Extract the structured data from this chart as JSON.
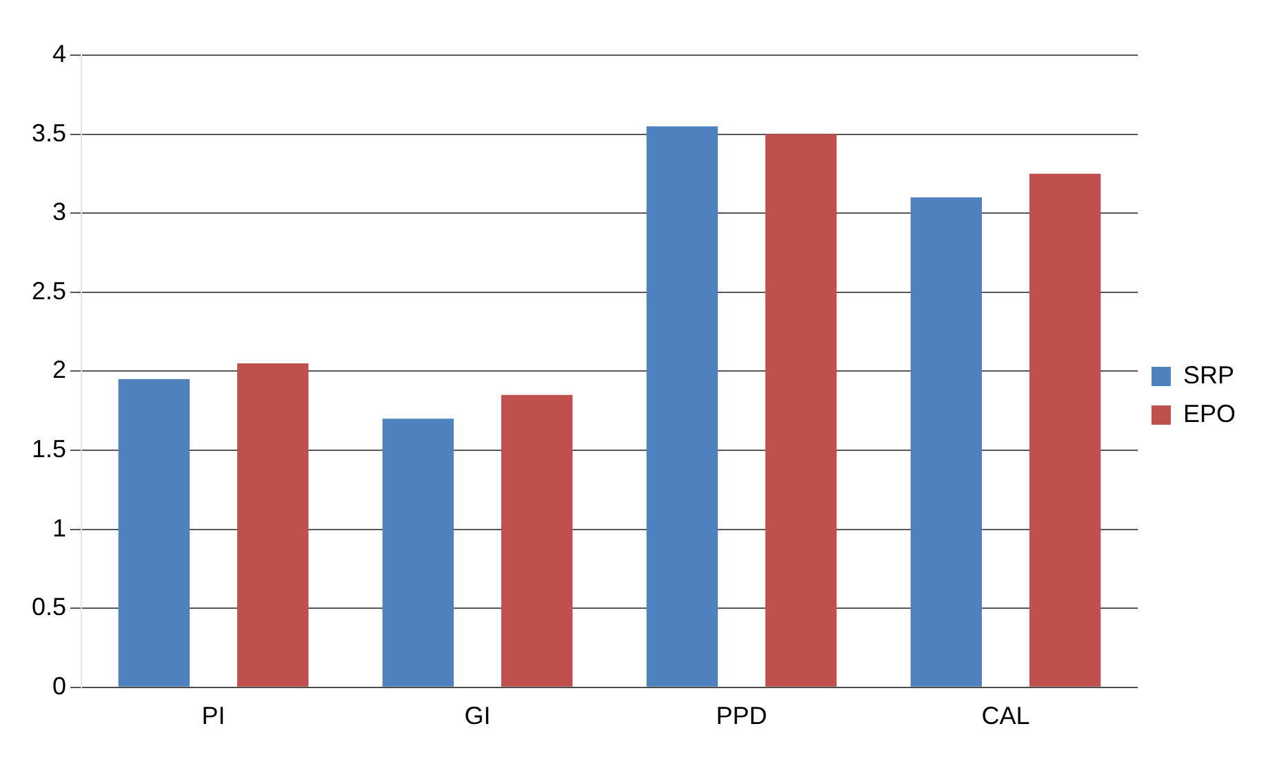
{
  "chart_data": {
    "type": "bar",
    "categories": [
      "PI",
      "GI",
      "PPD",
      "CAL"
    ],
    "series": [
      {
        "name": "SRP",
        "color": "#4f81bd",
        "values": [
          1.95,
          1.7,
          3.55,
          3.1
        ]
      },
      {
        "name": "EPO",
        "color": "#c0504d",
        "values": [
          2.05,
          1.85,
          3.5,
          3.25
        ]
      }
    ],
    "ylim": [
      0,
      4
    ],
    "yticks": [
      0,
      0.5,
      1,
      1.5,
      2,
      2.5,
      3,
      3.5,
      4
    ],
    "grid": "y",
    "legend": "right"
  }
}
